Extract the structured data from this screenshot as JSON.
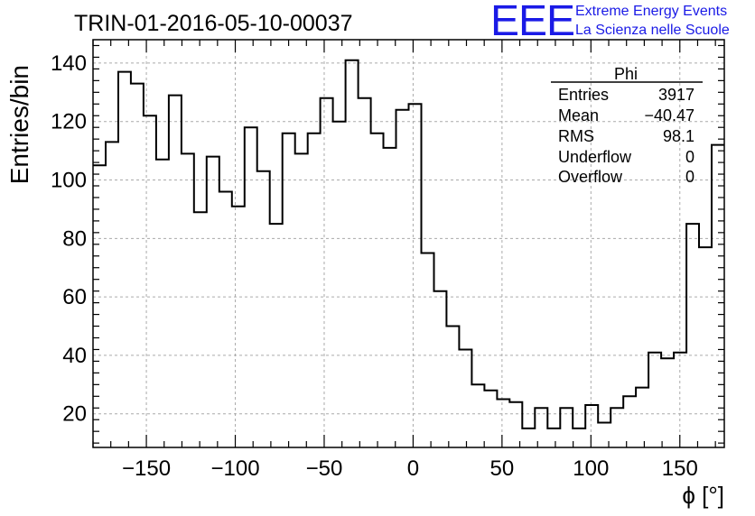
{
  "chart_data": {
    "type": "bar",
    "style": "step-histogram",
    "title": "TRIN-01-2016-05-10-00037",
    "xlabel": "ϕ [°]",
    "ylabel": "Entries/bin",
    "xlim": [
      -180,
      175
    ],
    "ylim": [
      8.5,
      148
    ],
    "grid": true,
    "bin_width": 7.1,
    "x_ticks": [
      -150,
      -100,
      -50,
      0,
      50,
      100,
      150
    ],
    "x_tick_labels": [
      "−150",
      "−100",
      "−50",
      "0",
      "50",
      "100",
      "150"
    ],
    "y_ticks": [
      20,
      40,
      60,
      80,
      100,
      120,
      140
    ],
    "y_tick_labels": [
      "20",
      "40",
      "60",
      "80",
      "100",
      "120",
      "140"
    ],
    "values": [
      105,
      113,
      137,
      133,
      122,
      107,
      129,
      109,
      89,
      108,
      96,
      91,
      118,
      103,
      85,
      116,
      109,
      116,
      128,
      120,
      141,
      128,
      116,
      111,
      124,
      126,
      75,
      62,
      50,
      42,
      30,
      28,
      25,
      24,
      15,
      22,
      15,
      22,
      15,
      23,
      17,
      22,
      26,
      29,
      41,
      39,
      41,
      85,
      77,
      112
    ],
    "stats": {
      "title": "Phi",
      "rows": [
        {
          "label": "Entries",
          "value": "3917"
        },
        {
          "label": "Mean",
          "value": "−40.47"
        },
        {
          "label": "RMS",
          "value": "98.1"
        },
        {
          "label": "Underflow",
          "value": "0"
        },
        {
          "label": "Overflow",
          "value": "0"
        }
      ]
    }
  },
  "logo": {
    "mark": "EEE",
    "line1": "Extreme Energy Events",
    "line2": "La Scienza nelle Scuole"
  },
  "colors": {
    "line": "#000000",
    "grid": "#aaaaaa",
    "logo": "#1a1ae6"
  }
}
